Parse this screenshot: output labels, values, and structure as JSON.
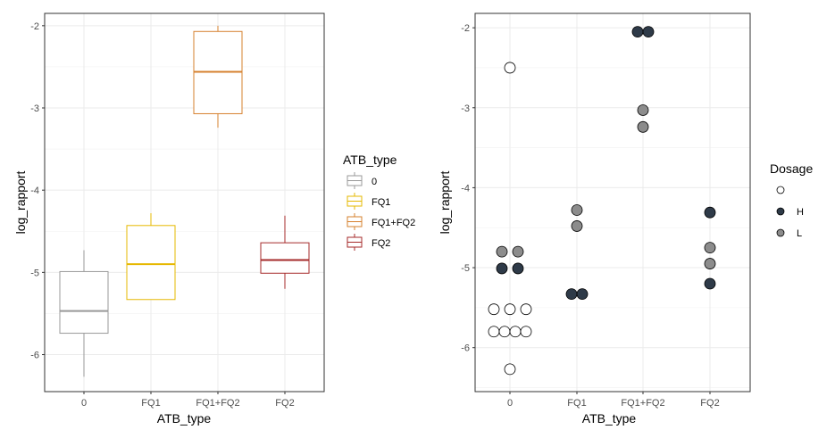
{
  "chart_data": [
    {
      "type": "boxplot",
      "xlabel": "ATB_type",
      "ylabel": "log_rapport",
      "ylim": [
        -6.45,
        -1.85
      ],
      "yticks": [
        -2,
        -3,
        -4,
        -5,
        -6
      ],
      "grid": true,
      "legend": {
        "title": "ATB_type",
        "placement": "right",
        "entries": [
          {
            "label": "0",
            "color": "#999999"
          },
          {
            "label": "FQ1",
            "color": "#E6B800"
          },
          {
            "label": "FQ1+FQ2",
            "color": "#D6802E"
          },
          {
            "label": "FQ2",
            "color": "#A52A2A"
          }
        ]
      },
      "categories": [
        "0",
        "FQ1",
        "FQ1+FQ2",
        "FQ2"
      ],
      "boxes": [
        {
          "category": "0",
          "min": -6.27,
          "q1": -5.74,
          "median": -5.47,
          "q3": -4.99,
          "max": -4.73,
          "color": "#999999"
        },
        {
          "category": "FQ1",
          "min": -5.33,
          "q1": -5.33,
          "median": -4.9,
          "q3": -4.43,
          "max": -4.28,
          "color": "#E6B800"
        },
        {
          "category": "FQ1+FQ2",
          "min": -3.24,
          "q1": -3.07,
          "median": -2.56,
          "q3": -2.07,
          "max": -2.0,
          "color": "#D6802E"
        },
        {
          "category": "FQ2",
          "min": -5.2,
          "q1": -5.01,
          "median": -4.85,
          "q3": -4.64,
          "max": -4.31,
          "color": "#A52A2A"
        }
      ]
    },
    {
      "type": "scatter",
      "xlabel": "ATB_type",
      "ylabel": "log_rapport",
      "ylim": [
        -6.55,
        -1.82
      ],
      "yticks": [
        -2,
        -3,
        -4,
        -5,
        -6
      ],
      "grid": true,
      "legend": {
        "title": "Dosage",
        "placement": "right",
        "entries": [
          {
            "label": "",
            "color": "#FFFFFF"
          },
          {
            "label": "H",
            "color": "#2E3A48"
          },
          {
            "label": "L",
            "color": "#8C8C8C"
          }
        ]
      },
      "categories": [
        "0",
        "FQ1",
        "FQ1+FQ2",
        "FQ2"
      ],
      "points": [
        {
          "category": "0",
          "offset": 0,
          "y": -2.5,
          "dosage": ""
        },
        {
          "category": "0",
          "offset": -1.5,
          "y": -4.8,
          "dosage": "L"
        },
        {
          "category": "0",
          "offset": 1.5,
          "y": -4.8,
          "dosage": "L"
        },
        {
          "category": "0",
          "offset": -1.5,
          "y": -5.01,
          "dosage": "H"
        },
        {
          "category": "0",
          "offset": 1.5,
          "y": -5.01,
          "dosage": "H"
        },
        {
          "category": "0",
          "offset": -3,
          "y": -5.52,
          "dosage": ""
        },
        {
          "category": "0",
          "offset": 0,
          "y": -5.52,
          "dosage": ""
        },
        {
          "category": "0",
          "offset": 3,
          "y": -5.52,
          "dosage": ""
        },
        {
          "category": "0",
          "offset": -3,
          "y": -5.8,
          "dosage": ""
        },
        {
          "category": "0",
          "offset": -1,
          "y": -5.8,
          "dosage": ""
        },
        {
          "category": "0",
          "offset": 1,
          "y": -5.8,
          "dosage": ""
        },
        {
          "category": "0",
          "offset": 3,
          "y": -5.8,
          "dosage": ""
        },
        {
          "category": "0",
          "offset": 0,
          "y": -6.27,
          "dosage": ""
        },
        {
          "category": "FQ1",
          "offset": 0,
          "y": -4.28,
          "dosage": "L"
        },
        {
          "category": "FQ1",
          "offset": 0,
          "y": -4.48,
          "dosage": "L"
        },
        {
          "category": "FQ1",
          "offset": -1,
          "y": -5.33,
          "dosage": "H"
        },
        {
          "category": "FQ1",
          "offset": 1,
          "y": -5.33,
          "dosage": "H"
        },
        {
          "category": "FQ1+FQ2",
          "offset": -1,
          "y": -2.05,
          "dosage": "H"
        },
        {
          "category": "FQ1+FQ2",
          "offset": 1,
          "y": -2.05,
          "dosage": "H"
        },
        {
          "category": "FQ1+FQ2",
          "offset": 0,
          "y": -3.03,
          "dosage": "L"
        },
        {
          "category": "FQ1+FQ2",
          "offset": 0,
          "y": -3.24,
          "dosage": "L"
        },
        {
          "category": "FQ2",
          "offset": 0,
          "y": -4.31,
          "dosage": "H"
        },
        {
          "category": "FQ2",
          "offset": 0,
          "y": -4.75,
          "dosage": "L"
        },
        {
          "category": "FQ2",
          "offset": 0,
          "y": -4.95,
          "dosage": "L"
        },
        {
          "category": "FQ2",
          "offset": 0,
          "y": -5.2,
          "dosage": "H"
        }
      ]
    }
  ]
}
